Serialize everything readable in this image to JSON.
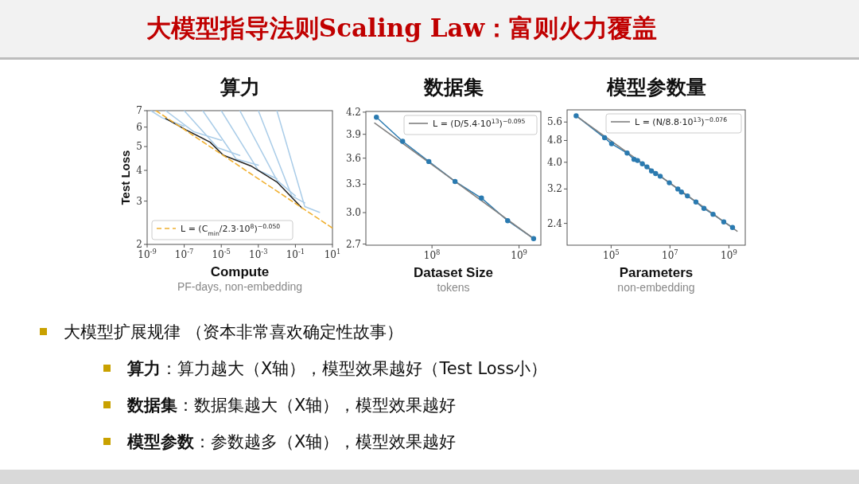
{
  "chart_data": [
    {
      "type": "line",
      "title": "算力",
      "xlabel": "Compute",
      "ylabel": "Test Loss",
      "annotations": [
        "PF-days, non-embedding"
      ],
      "log": "xy",
      "xlim": [
        1e-09,
        10
      ],
      "ylim": [
        2,
        7
      ],
      "xticks": [
        {
          "value": 1e-09,
          "label": "10$^{-9}$"
        },
        {
          "value": 1e-07,
          "label": "10$^{-7}$"
        },
        {
          "value": 1e-05,
          "label": "10$^{-5}$"
        },
        {
          "value": 0.001,
          "label": "10$^{-3}$"
        },
        {
          "value": 0.1,
          "label": "10$^{-1}$"
        },
        {
          "value": 10,
          "label": "10$^{1}$"
        }
      ],
      "yticks": [
        2,
        3,
        4,
        5,
        6,
        7
      ],
      "legend": "bottom left",
      "series": [
        {
          "color": "#a9cce8",
          "x": [
            1.6e-09,
            6.3e-09,
            1e-07
          ],
          "values": [
            7,
            6.55,
            6.05
          ]
        },
        {
          "color": "#a9cce8",
          "x": [
            1e-08,
            3.2e-07,
            1e-05
          ],
          "values": [
            7,
            5.75,
            5.3
          ]
        },
        {
          "color": "#a9cce8",
          "x": [
            1e-07,
            6.3e-06,
            0.0001
          ],
          "values": [
            7,
            4.95,
            4.6
          ]
        },
        {
          "color": "#a9cce8",
          "x": [
            1e-06,
            6.3e-05,
            0.001
          ],
          "values": [
            7,
            4.45,
            4.2
          ]
        },
        {
          "color": "#a9cce8",
          "x": [
            1e-05,
            0.001,
            0.01
          ],
          "values": [
            7,
            4.0,
            3.7
          ]
        },
        {
          "color": "#a9cce8",
          "x": [
            0.0001,
            0.01,
            0.1
          ],
          "values": [
            7,
            3.65,
            3.15
          ]
        },
        {
          "color": "#a9cce8",
          "x": [
            0.001,
            0.063,
            0.32
          ],
          "values": [
            7,
            3.15,
            2.95
          ]
        },
        {
          "color": "#a9cce8",
          "x": [
            0.01,
            0.32,
            2
          ],
          "values": [
            7,
            2.85,
            2.7
          ]
        },
        {
          "color": "#222222",
          "x": [
            1e-08,
            1.3e-07,
            2.5e-06,
            1.3e-05,
            0.0004,
            0.01,
            0.23
          ],
          "values": [
            6.5,
            5.84,
            5.21,
            4.61,
            4.17,
            3.59,
            2.81
          ]
        },
        {
          "name": "L = (C$_{min}$/2.3·10$^{8}$)$^{−0.050}$",
          "color": "#f0b030",
          "line_style": "dashed",
          "x": [
            3e-09,
            10
          ],
          "values": [
            7.0,
            2.33
          ]
        }
      ]
    },
    {
      "type": "line",
      "title": "数据集",
      "xlabel": "Dataset Size",
      "annotations": [
        "tokens"
      ],
      "log": "xy",
      "xlim": [
        17400000.0,
        1780000000.0
      ],
      "ylim": [
        2.69,
        4.21
      ],
      "xticks": [
        {
          "value": 100000000.0,
          "label": "10$^{8}$"
        },
        {
          "value": 1000000000.0,
          "label": "10$^{9}$"
        }
      ],
      "yticks": [
        2.7,
        {
          "value": 3.0,
          "label": "3.0"
        },
        3.3,
        3.6,
        3.9,
        4.2
      ],
      "legend": "top right",
      "series": [
        {
          "color": "#2a7ab0",
          "marker": "circle",
          "x": [
            23000000.0,
            46000000.0,
            92000000.0,
            184000000.0,
            370000000.0,
            740000000.0,
            1470000000.0
          ],
          "values": [
            4.13,
            3.81,
            3.56,
            3.33,
            3.15,
            2.92,
            2.75
          ]
        },
        {
          "name": "L = (D/5.4·10$^{13}$)$^{−0.095}$",
          "color": "#808080",
          "x": [
            22000000.0,
            1470000000.0
          ],
          "values": [
            4.05,
            2.75
          ]
        }
      ]
    },
    {
      "type": "line",
      "title": "模型参数量",
      "xlabel": "Parameters",
      "annotations": [
        "non-embedding"
      ],
      "log": "xy",
      "xlim": [
        3200.0,
        3600000000.0
      ],
      "ylim": [
        2.0,
        6.2
      ],
      "xticks": [
        {
          "value": 100000.0,
          "label": "10$^{5}$"
        },
        {
          "value": 10000000.0,
          "label": "10$^{7}$"
        },
        {
          "value": 1000000000.0,
          "label": "10$^{9}$"
        }
      ],
      "yticks": [
        2.4,
        3.2,
        {
          "value": 4.0,
          "label": "4.0"
        },
        4.8,
        5.6
      ],
      "legend": "top right",
      "series": [
        {
          "color": "#2a7ab0",
          "marker": "circle",
          "x": [
            6500.0,
            60000.0,
            104000.0,
            350000.0,
            600000.0,
            790000.0,
            1150000.0,
            1650000.0,
            2350000.0,
            3250000.0,
            4650000.0,
            9500000.0,
            18500000.0,
            24500000.0,
            39000000.0,
            76000000.0,
            142000000.0,
            290000000.0,
            670000000.0,
            1330000000.0
          ],
          "values": [
            5.9,
            4.91,
            4.67,
            4.32,
            4.1,
            4.06,
            3.95,
            3.85,
            3.72,
            3.64,
            3.56,
            3.37,
            3.2,
            3.12,
            3.02,
            2.87,
            2.72,
            2.59,
            2.43,
            2.32
          ]
        },
        {
          "name": "L = (N/8.8·10$^{13}$)$^{−0.076}$",
          "color": "#808080",
          "x": [
            6000.0,
            1900000000.0
          ],
          "values": [
            5.93,
            2.25
          ]
        }
      ]
    },
    {
      "type": "other",
      "title": "大模型指导法则Scaling Law：富则火力覆盖",
      "annotations": [
        "大模型扩展规律 （资本非常喜欢确定性故事）",
        "**算力**：算力越大（X轴），模型效果越好（Test Loss小）",
        "**数据集**：数据集越大（X轴），模型效果越好",
        "**模型参数**：参数越多（X轴），模型效果越好"
      ]
    }
  ]
}
